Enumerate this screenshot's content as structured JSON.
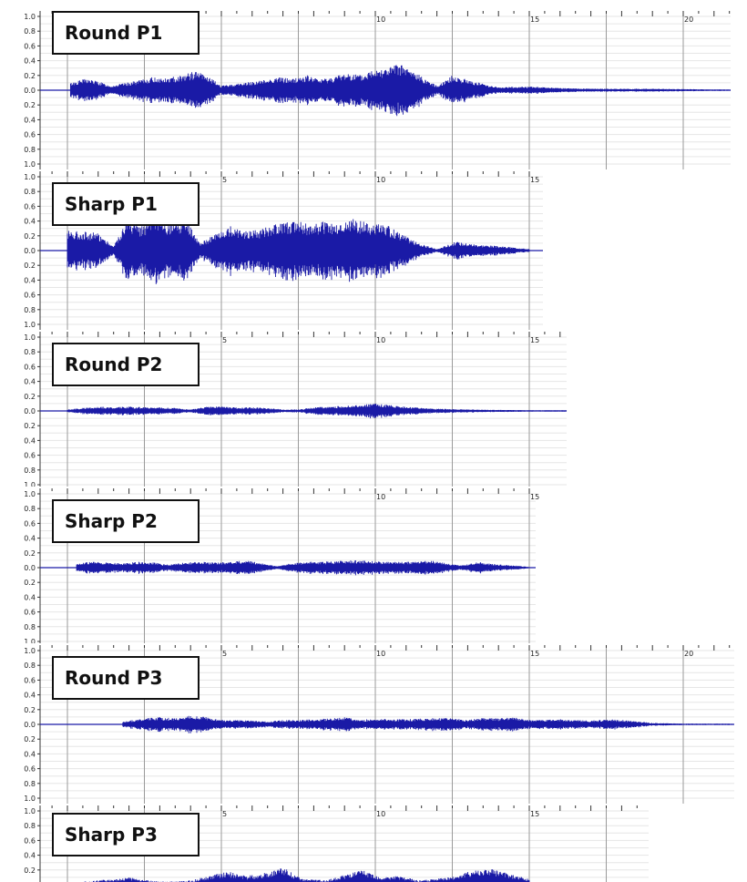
{
  "colors": {
    "waveform": "#1a1aa6",
    "baseline": "#1a1aa6",
    "grid_major": "#9a9a9a",
    "grid_minor": "#e6e6e6"
  },
  "chart_data": [
    {
      "type": "area",
      "title": "Round P1",
      "y_ticks": [
        "1.0",
        "0.8",
        "0.6",
        "0.4",
        "0.2",
        "0.0",
        "0.2",
        "0.4",
        "0.6",
        "0.8",
        "1.0"
      ],
      "x_tick_labels": [
        "10",
        "15",
        "20"
      ],
      "ylim": [
        -1,
        1
      ],
      "xlim": [
        -0.5,
        22.5
      ],
      "duration": 22.5,
      "envelope": {
        "x": [
          0.1,
          0.6,
          1.0,
          1.4,
          2.4,
          2.8,
          3.2,
          3.6,
          4.2,
          4.6,
          5.0,
          6.4,
          6.8,
          7.3,
          7.8,
          8.2,
          8.6,
          9.1,
          9.6,
          10.0,
          10.3,
          10.8,
          11.3,
          12.0,
          12.5,
          13.2,
          14.0,
          15.0,
          16.0,
          17.0,
          18.0,
          19.0,
          20.0,
          21.0,
          22.0
        ],
        "amplitude": [
          0.1,
          0.16,
          0.12,
          0.06,
          0.14,
          0.18,
          0.16,
          0.2,
          0.26,
          0.18,
          0.06,
          0.14,
          0.18,
          0.16,
          0.2,
          0.15,
          0.18,
          0.24,
          0.2,
          0.32,
          0.3,
          0.36,
          0.24,
          0.06,
          0.2,
          0.12,
          0.04,
          0.05,
          0.03,
          0.02,
          0.02,
          0.02,
          0.015,
          0.01,
          0.01
        ]
      }
    },
    {
      "type": "area",
      "title": "Sharp P1",
      "y_ticks": [
        "1.0",
        "0.8",
        "0.6",
        "0.4",
        "0.2",
        "0.0",
        "0.2",
        "0.4",
        "0.6",
        "0.8",
        "1.0"
      ],
      "x_tick_labels": [
        "5",
        "10",
        "15"
      ],
      "ylim": [
        -1,
        1
      ],
      "xlim": [
        -0.5,
        16
      ],
      "duration": 16,
      "envelope": {
        "x": [
          0.0,
          0.5,
          1.0,
          1.5,
          1.9,
          2.4,
          2.9,
          3.4,
          3.9,
          4.3,
          5.3,
          5.8,
          6.3,
          6.8,
          7.3,
          7.8,
          8.3,
          8.8,
          9.3,
          9.8,
          10.4,
          10.9,
          11.4,
          12.0,
          12.6,
          13.4,
          14.0,
          14.6,
          15.0
        ],
        "amplitude": [
          0.28,
          0.26,
          0.24,
          0.06,
          0.4,
          0.34,
          0.44,
          0.36,
          0.4,
          0.1,
          0.34,
          0.28,
          0.3,
          0.36,
          0.42,
          0.36,
          0.4,
          0.34,
          0.44,
          0.38,
          0.34,
          0.22,
          0.1,
          0.02,
          0.12,
          0.08,
          0.06,
          0.04,
          0.02
        ]
      }
    },
    {
      "type": "area",
      "title": "Round P2",
      "y_ticks": [
        "1.0",
        "0.8",
        "0.6",
        "0.4",
        "0.2",
        "0.0",
        "0.2",
        "0.4",
        "0.6",
        "0.8",
        "1.0"
      ],
      "x_tick_labels": [
        "5",
        "10",
        "15"
      ],
      "ylim": [
        -1,
        1
      ],
      "xlim": [
        -0.5,
        17
      ],
      "duration": 17,
      "envelope": {
        "x": [
          0.0,
          0.5,
          1.0,
          1.5,
          2.0,
          2.5,
          3.0,
          3.5,
          4.0,
          4.5,
          5.0,
          5.5,
          6.0,
          6.5,
          7.0,
          7.5,
          8.0,
          8.5,
          9.0,
          9.5,
          10.0,
          10.5,
          11.0,
          11.5,
          12.0,
          13.0,
          14.0,
          15.0,
          16.0,
          17.0
        ],
        "amplitude": [
          0.02,
          0.04,
          0.06,
          0.05,
          0.06,
          0.05,
          0.05,
          0.04,
          0.02,
          0.06,
          0.06,
          0.05,
          0.05,
          0.04,
          0.02,
          0.02,
          0.05,
          0.06,
          0.07,
          0.08,
          0.1,
          0.08,
          0.06,
          0.04,
          0.03,
          0.02,
          0.015,
          0.01,
          0.01,
          0.01
        ]
      }
    },
    {
      "type": "area",
      "title": "Sharp P2",
      "y_ticks": [
        "1.0",
        "0.8",
        "0.6",
        "0.4",
        "0.2",
        "0.0",
        "0.2",
        "0.4",
        "0.6",
        "0.8",
        "1.0"
      ],
      "x_tick_labels": [
        "10",
        "15"
      ],
      "ylim": [
        -1,
        1
      ],
      "xlim": [
        -0.5,
        16
      ],
      "duration": 16,
      "envelope": {
        "x": [
          0.3,
          0.8,
          1.3,
          1.8,
          2.3,
          2.8,
          3.3,
          3.8,
          4.3,
          4.8,
          5.3,
          5.8,
          6.3,
          6.8,
          7.3,
          7.8,
          8.3,
          8.8,
          9.3,
          9.8,
          10.3,
          10.8,
          11.3,
          11.8,
          12.3,
          12.8,
          13.3,
          13.8,
          14.5,
          15.0
        ],
        "amplitude": [
          0.06,
          0.08,
          0.07,
          0.06,
          0.08,
          0.07,
          0.04,
          0.07,
          0.08,
          0.07,
          0.08,
          0.1,
          0.06,
          0.02,
          0.06,
          0.08,
          0.08,
          0.09,
          0.1,
          0.09,
          0.08,
          0.08,
          0.08,
          0.1,
          0.06,
          0.03,
          0.08,
          0.05,
          0.03,
          0.01
        ]
      }
    },
    {
      "type": "area",
      "title": "Round P3",
      "y_ticks": [
        "1.0",
        "0.8",
        "0.6",
        "0.4",
        "0.2",
        "0.0",
        "0.2",
        "0.4",
        "0.6",
        "0.8",
        "1.0"
      ],
      "x_tick_labels": [
        "5",
        "10",
        "15",
        "20"
      ],
      "ylim": [
        -1,
        1
      ],
      "xlim": [
        -0.5,
        22.5
      ],
      "duration": 22.5,
      "envelope": {
        "x": [
          1.8,
          2.5,
          3.0,
          3.5,
          4.0,
          4.5,
          5.0,
          5.5,
          6.0,
          6.5,
          7.0,
          7.5,
          8.0,
          8.5,
          9.0,
          9.5,
          10.0,
          10.5,
          11.0,
          11.5,
          12.0,
          12.5,
          13.0,
          13.5,
          14.0,
          14.5,
          15.0,
          15.5,
          16.0,
          16.5,
          17.0,
          17.5,
          18.0,
          18.5,
          19.0,
          20.0,
          21.0,
          22.0
        ],
        "amplitude": [
          0.04,
          0.08,
          0.1,
          0.08,
          0.12,
          0.1,
          0.06,
          0.06,
          0.05,
          0.04,
          0.06,
          0.06,
          0.07,
          0.08,
          0.1,
          0.06,
          0.08,
          0.07,
          0.07,
          0.08,
          0.09,
          0.08,
          0.06,
          0.09,
          0.08,
          0.1,
          0.06,
          0.06,
          0.07,
          0.06,
          0.05,
          0.07,
          0.06,
          0.04,
          0.02,
          0.01,
          0.01,
          0.01
        ]
      }
    },
    {
      "type": "area",
      "title": "Sharp P3",
      "y_ticks": [
        "1.0",
        "0.8",
        "0.6",
        "0.4",
        "0.2"
      ],
      "x_tick_labels": [
        "5",
        "10",
        "15"
      ],
      "ylim": [
        -1,
        1
      ],
      "xlim": [
        -0.5,
        19.5
      ],
      "duration": 19.5,
      "envelope": {
        "x": [
          0.5,
          1.5,
          2.0,
          2.6,
          3.2,
          4.0,
          5.2,
          5.8,
          6.4,
          7.0,
          7.6,
          8.4,
          9.0,
          9.6,
          10.2,
          10.8,
          11.4,
          12.0,
          12.6,
          13.2,
          13.8,
          14.4,
          15.0
        ],
        "amplitude": [
          0.04,
          0.08,
          0.1,
          0.06,
          0.04,
          0.06,
          0.18,
          0.12,
          0.16,
          0.24,
          0.08,
          0.06,
          0.14,
          0.2,
          0.1,
          0.12,
          0.06,
          0.08,
          0.12,
          0.2,
          0.22,
          0.14,
          0.08
        ]
      }
    }
  ]
}
